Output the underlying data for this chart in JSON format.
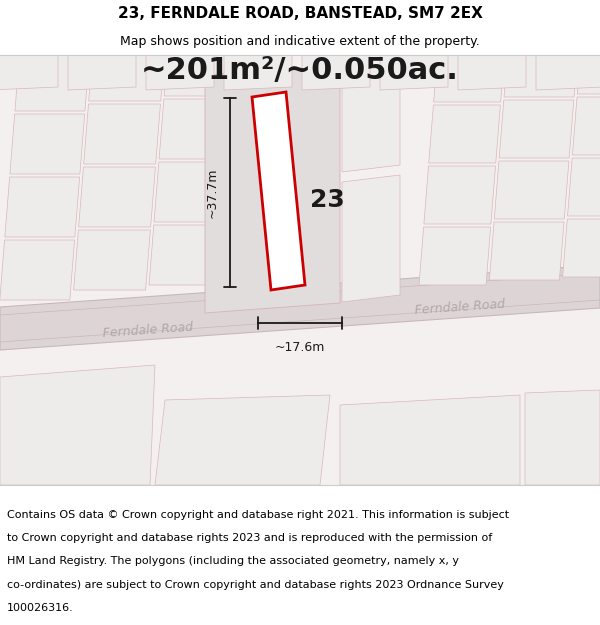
{
  "title": "23, FERNDALE ROAD, BANSTEAD, SM7 2EX",
  "subtitle": "Map shows position and indicative extent of the property.",
  "area_text": "~201m²/~0.050ac.",
  "width_label": "~17.6m",
  "height_label": "~37.7m",
  "road_label_left": "Ferndale Road",
  "road_label_right": "Ferndale Road",
  "house_number": "23",
  "footer_lines": [
    "Contains OS data © Crown copyright and database right 2021. This information is subject",
    "to Crown copyright and database rights 2023 and is reproduced with the permission of",
    "HM Land Registry. The polygons (including the associated geometry, namely x, y",
    "co-ordinates) are subject to Crown copyright and database rights 2023 Ordnance Survey",
    "100026316."
  ],
  "bg_white": "#ffffff",
  "map_bg": "#f5f0f0",
  "parcel_fill": "#eeebeb",
  "parcel_fill_dark": "#e2dddd",
  "parcel_edge": "#d8b8b8",
  "road_fill": "#ddd5d5",
  "road_edge": "#c8b8b8",
  "highlight_edge": "#cc0000",
  "highlight_fill": "#ffffff",
  "dim_color": "#1a1a1a",
  "road_text_color": "#b0a8a8",
  "title_fs": 11,
  "subtitle_fs": 9,
  "area_fs": 22,
  "num_fs": 18,
  "footer_fs": 8.0,
  "dim_fs": 9,
  "road_fs": 9
}
